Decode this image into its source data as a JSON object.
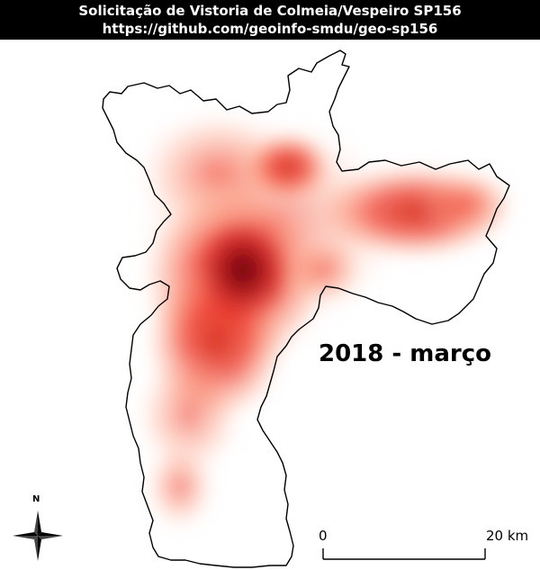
{
  "header": {
    "title": "Solicitação de Vistoria de Colmeia/Vespeiro SP156",
    "url": "https://github.com/geoinfo-smdu/geo-sp156"
  },
  "map": {
    "period_label": "2018 - março",
    "heat_colors": {
      "low": "#fde0d2",
      "mid": "#ef3b2c",
      "high": "#67000d"
    },
    "boundary_color": "#000000"
  },
  "scale_bar": {
    "start_label": "0",
    "end_label": "20 km"
  },
  "north_arrow": {
    "label": "N",
    "icon": "compass-rose-icon"
  }
}
